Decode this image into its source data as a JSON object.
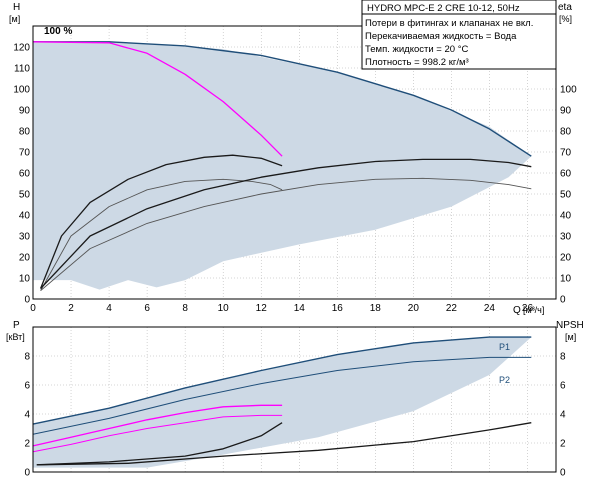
{
  "colors": {
    "area": "#cdd9e5",
    "frame": "#000000",
    "grid": "#aaaaaa",
    "head_curve": "#1f4e79",
    "magenta": "#ff00ff",
    "curve_dark": "#1a1a1a",
    "curve_mid": "#555555"
  },
  "info_box": [
    "HYDRO MPC-E 2 CRE 10-12, 50Hz",
    "Потери в фитингах и клапанах не вкл.",
    "Перекачиваемая жидкость = Вода",
    "Темп. жидкости = 20 °C",
    "Плотность = 998.2 кг/м³"
  ],
  "chart_data": [
    {
      "type": "line",
      "title": "HYDRO MPC-E 2 CRE 10-12, 50Hz",
      "ylabel": "H",
      "ylabel_unit": "[м]",
      "ylabel_right": "eta",
      "ylabel_right_unit": "[%]",
      "xlabel": "Q",
      "xlabel_unit": "[м³/ч]",
      "xlim": [
        0,
        27.5
      ],
      "ylim": [
        0,
        130
      ],
      "x_ticks": [
        0,
        2,
        4,
        6,
        8,
        10,
        12,
        14,
        16,
        18,
        20,
        22,
        24,
        26
      ],
      "y_ticks": [
        0,
        10,
        20,
        30,
        40,
        50,
        60,
        70,
        80,
        90,
        100,
        110,
        120
      ],
      "y_right_ticks": [
        0,
        10,
        20,
        30,
        40,
        50,
        60,
        70,
        80,
        90,
        100
      ],
      "grid": true,
      "annotations": [
        "100 %"
      ],
      "series": [
        {
          "kind": "area",
          "x": [
            0,
            4,
            10,
            16,
            20,
            24,
            26.2,
            25,
            22,
            18,
            14,
            10,
            8,
            6.5,
            5,
            3.5,
            2,
            0
          ],
          "y": [
            122.5,
            122.5,
            119,
            108,
            97,
            82,
            68,
            58,
            44,
            33,
            26,
            18,
            9,
            5.5,
            9,
            4.5,
            9,
            9
          ]
        },
        {
          "kind": "head",
          "x": [
            0,
            4,
            8,
            12,
            16,
            20,
            22,
            24,
            26.2
          ],
          "y": [
            122.5,
            122.5,
            120.5,
            116,
            108,
            97,
            90,
            81,
            68
          ]
        },
        {
          "kind": "head-single",
          "x": [
            0,
            4,
            6,
            8,
            10,
            12,
            13.1
          ],
          "y": [
            122.5,
            122,
            117,
            107,
            94,
            78,
            68
          ]
        },
        {
          "kind": "eta",
          "x": [
            0.4,
            2,
            4,
            6,
            8,
            10,
            11.5,
            12.5,
            13.1
          ],
          "y": [
            4,
            30,
            44,
            52,
            56,
            57,
            56,
            54.5,
            52
          ]
        },
        {
          "kind": "eta",
          "x": [
            0.4,
            1.5,
            3,
            5,
            7,
            9,
            10.5,
            12,
            13.1
          ],
          "y": [
            5,
            30,
            46,
            57,
            64,
            67.5,
            68.5,
            67,
            63.5
          ]
        },
        {
          "kind": "eta",
          "x": [
            0.4,
            3,
            6,
            9,
            12,
            15,
            18,
            20.5,
            23,
            25,
            26.2
          ],
          "y": [
            4,
            24,
            36,
            44,
            50,
            54.5,
            57,
            57.5,
            56.5,
            54.5,
            52.5
          ]
        },
        {
          "kind": "eta",
          "x": [
            0.4,
            3,
            6,
            9,
            12,
            15,
            18,
            20.5,
            23,
            25,
            26.2
          ],
          "y": [
            5,
            30,
            43,
            52,
            58,
            62.5,
            65.5,
            66.5,
            66.5,
            65,
            63
          ]
        }
      ]
    },
    {
      "type": "line",
      "ylabel": "P",
      "ylabel_unit": "[кВт]",
      "ylabel_right": "NPSH",
      "ylabel_right_unit": "[м]",
      "xlim": [
        0,
        27.5
      ],
      "ylim": [
        0,
        10
      ],
      "y_ticks": [
        0,
        2,
        4,
        6,
        8
      ],
      "y_right_ticks": [
        0,
        2,
        4,
        6,
        8
      ],
      "grid": true,
      "series": [
        {
          "kind": "area",
          "x": [
            0,
            4,
            8,
            12,
            16,
            20,
            24,
            26.2,
            24,
            20,
            15,
            10,
            6,
            3,
            0
          ],
          "y": [
            3.3,
            4.4,
            5.8,
            7.0,
            8.1,
            8.9,
            9.3,
            9.3,
            6.7,
            4.2,
            2.4,
            1.2,
            0.3,
            0.3,
            0.3
          ]
        },
        {
          "name": "P1",
          "kind": "p1",
          "x": [
            0,
            4,
            8,
            12,
            16,
            20,
            24,
            26.2
          ],
          "y": [
            3.3,
            4.4,
            5.8,
            7.0,
            8.1,
            8.9,
            9.3,
            9.3
          ]
        },
        {
          "name": "P2",
          "kind": "p2",
          "x": [
            0,
            4,
            8,
            12,
            16,
            20,
            24,
            26.2
          ],
          "y": [
            2.6,
            3.7,
            5.0,
            6.1,
            7.0,
            7.6,
            7.9,
            7.9
          ]
        },
        {
          "kind": "p1-single",
          "x": [
            0,
            2,
            4,
            6,
            8,
            10,
            12,
            13.1
          ],
          "y": [
            1.8,
            2.4,
            3.0,
            3.6,
            4.1,
            4.5,
            4.6,
            4.6
          ]
        },
        {
          "kind": "p2-single",
          "x": [
            0,
            2,
            4,
            6,
            8,
            10,
            12,
            13.1
          ],
          "y": [
            1.4,
            1.9,
            2.5,
            3.0,
            3.4,
            3.8,
            3.9,
            3.9
          ]
        },
        {
          "kind": "npsh",
          "x": [
            0.2,
            4,
            8,
            10,
            12,
            13.1
          ],
          "y": [
            0.5,
            0.7,
            1.1,
            1.6,
            2.5,
            3.4
          ]
        },
        {
          "kind": "npsh",
          "x": [
            0.2,
            5,
            10,
            15,
            20,
            24,
            26.2
          ],
          "y": [
            0.5,
            0.6,
            1.1,
            1.5,
            2.1,
            2.9,
            3.4
          ]
        }
      ]
    }
  ]
}
